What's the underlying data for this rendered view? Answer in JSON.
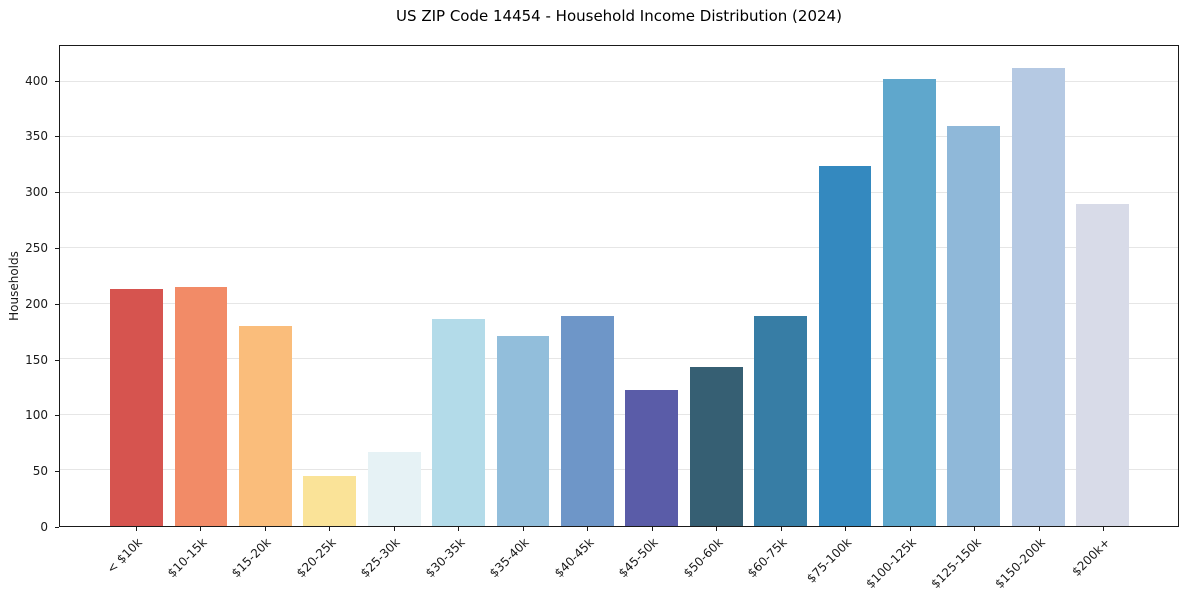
{
  "chart": {
    "title": "US ZIP Code 14454 - Household Income Distribution (2024)",
    "ylabel": "Households"
  },
  "chart_data": {
    "type": "bar",
    "title": "US ZIP Code 14454 - Household Income Distribution (2024)",
    "xlabel": "",
    "ylabel": "Households",
    "categories": [
      "< $10k",
      "$10-15k",
      "$15-20k",
      "$20-25k",
      "$25-30k",
      "$30-35k",
      "$35-40k",
      "$40-45k",
      "$45-50k",
      "$50-60k",
      "$60-75k",
      "$75-100k",
      "$100-125k",
      "$125-150k",
      "$150-200k",
      "$200k+"
    ],
    "values": [
      213,
      215,
      180,
      45,
      67,
      186,
      171,
      189,
      122,
      143,
      189,
      324,
      402,
      360,
      412,
      290
    ],
    "bar_colors": [
      "#d6544f",
      "#f28b67",
      "#fabd7b",
      "#fae398",
      "#e6f2f5",
      "#b3dbe9",
      "#92bedb",
      "#6e96c8",
      "#5a5ca8",
      "#365f73",
      "#377da5",
      "#3489bf",
      "#5fa7cc",
      "#8fb8d9",
      "#b5c9e3",
      "#d8dbe8"
    ],
    "yticks": [
      0,
      50,
      100,
      150,
      200,
      250,
      300,
      350,
      400
    ],
    "ylim": [
      0,
      432
    ],
    "grid": "horizontal",
    "gridline_color": "#e6e6e6",
    "background_color": "#ffffff",
    "spine_color": "#1a1a1a",
    "legend": "none",
    "xtick_rotation_deg": 45
  }
}
